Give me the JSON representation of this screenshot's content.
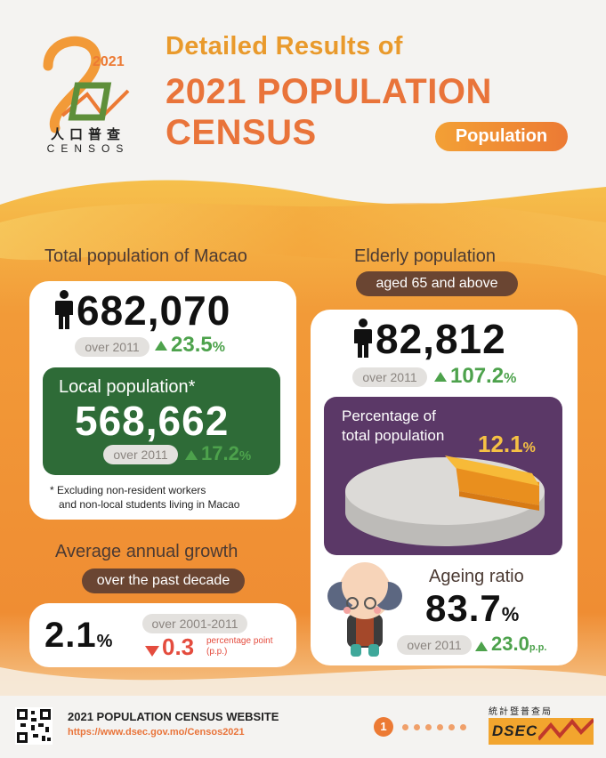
{
  "header": {
    "logo_year": "2021",
    "logo_chinese": "人口普查",
    "logo_censos": "CENSOS",
    "subtitle": "Detailed Results of",
    "title_line1": "2021 POPULATION",
    "title_line2": "CENSUS",
    "category": "Population"
  },
  "total_population": {
    "heading": "Total population of Macao",
    "value": "682,070",
    "compare_label": "over 2011",
    "change": "23.5",
    "change_unit": "%",
    "local": {
      "label": "Local population*",
      "value": "568,662",
      "compare_label": "over 2011",
      "change": "17.2",
      "change_unit": "%"
    },
    "footnote_line1": "* Excluding non-resident workers",
    "footnote_line2": "and non-local students living in Macao"
  },
  "growth": {
    "heading": "Average annual growth",
    "pill": "over the past decade",
    "value": "2.1",
    "value_unit": "%",
    "compare_label": "over 2001-2011",
    "change": "0.3",
    "change_unit_line1": "percentage point",
    "change_unit_line2": "(p.p.)"
  },
  "elderly": {
    "heading": "Elderly population",
    "pill": "aged 65 and above",
    "value": "82,812",
    "compare_label": "over 2011",
    "change": "107.2",
    "change_unit": "%",
    "percentage": {
      "label_line1": "Percentage of",
      "label_line2": "total population",
      "value": "12.1",
      "unit": "%",
      "share": 0.121
    },
    "ageing": {
      "label": "Ageing ratio",
      "value": "83.7",
      "unit": "%",
      "compare_label": "over 2011",
      "change": "23.0",
      "change_unit": "p.p."
    }
  },
  "footer": {
    "website_title": "2021 POPULATION CENSUS WEBSITE",
    "url": "https://www.dsec.gov.mo/Censos2021",
    "page_current": "1",
    "dsec_chinese": "統計暨普查局",
    "dsec_label": "DSEC"
  },
  "colors": {
    "orange": "#ec7a34",
    "green_card": "#2e6b37",
    "purple_card": "#5b3867",
    "increase": "#4da24c",
    "decrease": "#e44c3e"
  }
}
